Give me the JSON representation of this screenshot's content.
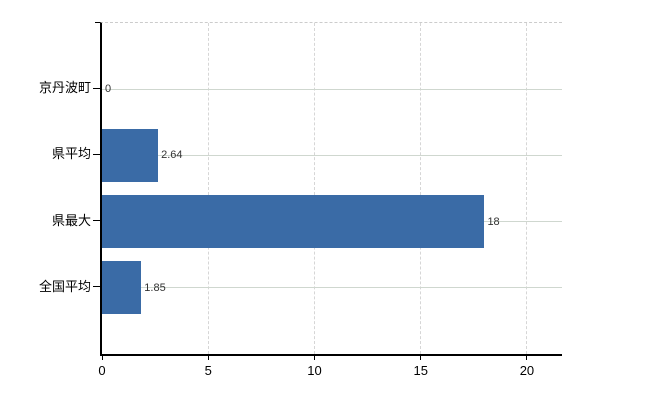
{
  "chart_data": {
    "type": "bar",
    "orientation": "horizontal",
    "title": "",
    "xlabel": "",
    "ylabel": "",
    "categories": [
      "京丹波町",
      "県平均",
      "県最大",
      "全国平均"
    ],
    "values": [
      0,
      2.64,
      18,
      1.85
    ],
    "value_labels": [
      "0",
      "2.64",
      "18",
      "1.85"
    ],
    "x_ticks": [
      0,
      5,
      10,
      15,
      20
    ],
    "x_tick_labels": [
      "0",
      "5",
      "10",
      "15",
      "20"
    ],
    "xlim": [
      0,
      21.65
    ],
    "grid": "on",
    "legend": "none",
    "colors": {
      "bar": "#3a6ba6",
      "axis": "#000000",
      "grid_horizontal": "#cfd7cf",
      "grid_vertical": "#d6d6d6",
      "top_border": "#cccccc",
      "category_text": "#000000",
      "value_text": "#333333",
      "background": "#ffffff"
    }
  }
}
